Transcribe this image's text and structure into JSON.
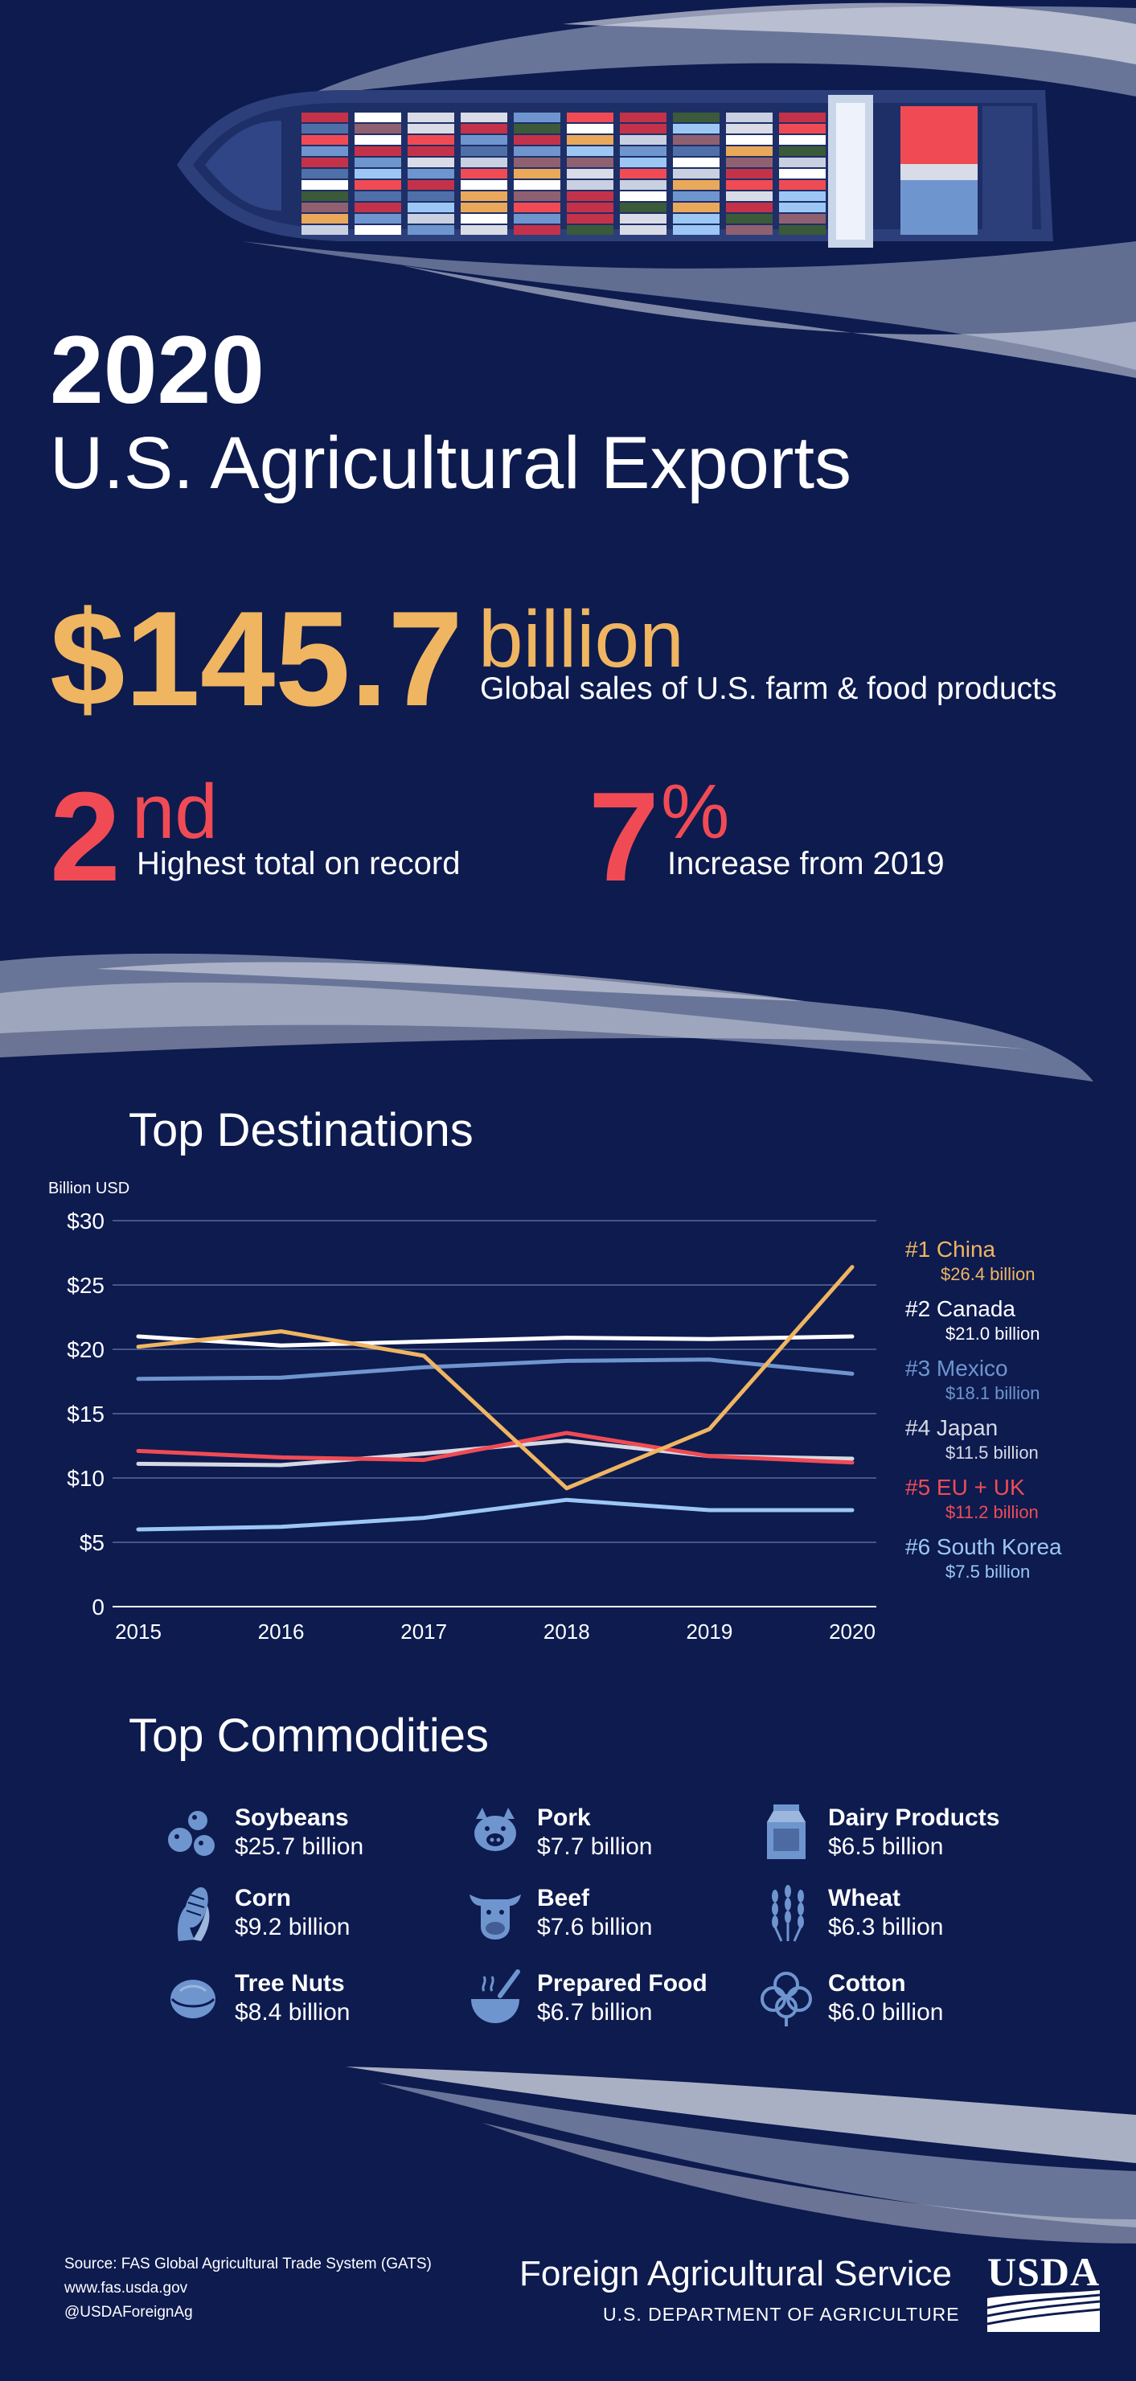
{
  "header": {
    "year": "2020",
    "title": "U.S. Agricultural Exports"
  },
  "headline": {
    "amount": "$145.7",
    "unit": "billion",
    "description": "Global sales of U.S. farm & food products"
  },
  "stats": [
    {
      "number": "2",
      "suffix": "nd",
      "description": "Highest total on record"
    },
    {
      "number": "7",
      "suffix": "%",
      "description": "Increase from 2019"
    }
  ],
  "destinations": {
    "title": "Top Destinations",
    "legend": [
      {
        "name": "#1 China",
        "value": "$26.4 billion",
        "color": "#f0b561"
      },
      {
        "name": "#2 Canada",
        "value": "$21.0 billion",
        "color": "#ffffff"
      },
      {
        "name": "#3 Mexico",
        "value": "$18.1 billion",
        "color": "#6f95cf"
      },
      {
        "name": "#4 Japan",
        "value": "$11.5 billion",
        "color": "#d6d9e3"
      },
      {
        "name": "#5 EU + UK",
        "value": "$11.2 billion",
        "color": "#f04b55"
      },
      {
        "name": "#6 South Korea",
        "value": "$7.5 billion",
        "color": "#9cc7f5"
      }
    ]
  },
  "chart_data": {
    "type": "line",
    "title": "Top Destinations",
    "ylabel": "Billion USD",
    "xlabel": "",
    "x": [
      "2015",
      "2016",
      "2017",
      "2018",
      "2019",
      "2020"
    ],
    "ylim": [
      0,
      30
    ],
    "yticks": [
      "0",
      "$5",
      "$10",
      "$15",
      "$20",
      "$25",
      "$30"
    ],
    "grid": true,
    "legend_position": "right",
    "series": [
      {
        "name": "China",
        "color": "#f0b561",
        "values": [
          20.2,
          21.4,
          19.5,
          9.2,
          13.8,
          26.4
        ]
      },
      {
        "name": "Canada",
        "color": "#ffffff",
        "values": [
          21.0,
          20.3,
          20.6,
          20.9,
          20.8,
          21.0
        ]
      },
      {
        "name": "Mexico",
        "color": "#6f95cf",
        "values": [
          17.7,
          17.8,
          18.6,
          19.1,
          19.2,
          18.1
        ]
      },
      {
        "name": "Japan",
        "color": "#d6d9e3",
        "values": [
          11.1,
          11.0,
          11.9,
          12.9,
          11.7,
          11.5
        ]
      },
      {
        "name": "EU + UK",
        "color": "#f04b55",
        "values": [
          12.1,
          11.6,
          11.4,
          13.5,
          11.7,
          11.2
        ]
      },
      {
        "name": "South Korea",
        "color": "#9cc7f5",
        "values": [
          6.0,
          6.2,
          6.9,
          8.3,
          7.5,
          7.5
        ]
      }
    ]
  },
  "commodities": {
    "title": "Top Commodities",
    "items": [
      {
        "name": "Soybeans",
        "value": "$25.7 billion",
        "icon": "soybeans-icon"
      },
      {
        "name": "Pork",
        "value": "$7.7 billion",
        "icon": "pig-icon"
      },
      {
        "name": "Dairy Products",
        "value": "$6.5 billion",
        "icon": "milk-carton-icon"
      },
      {
        "name": "Corn",
        "value": "$9.2 billion",
        "icon": "corn-icon"
      },
      {
        "name": "Beef",
        "value": "$7.6 billion",
        "icon": "cow-icon"
      },
      {
        "name": "Wheat",
        "value": "$6.3 billion",
        "icon": "wheat-icon"
      },
      {
        "name": "Tree Nuts",
        "value": "$8.4 billion",
        "icon": "nut-icon"
      },
      {
        "name": "Prepared Food",
        "value": "$6.7 billion",
        "icon": "bowl-icon"
      },
      {
        "name": "Cotton",
        "value": "$6.0 billion",
        "icon": "cotton-icon"
      }
    ]
  },
  "footer": {
    "source": "Source: FAS Global Agricultural Trade System (GATS)",
    "website": "www.fas.usda.gov",
    "handle": "@USDAForeignAg",
    "agency": "Foreign Agricultural Service",
    "department": "U.S. DEPARTMENT OF AGRICULTURE",
    "logo_text": "USDA"
  },
  "colors": {
    "background": "#0d1b4f",
    "gold": "#f0b561",
    "red": "#f04b55",
    "icon_blue": "#6f95cf"
  }
}
